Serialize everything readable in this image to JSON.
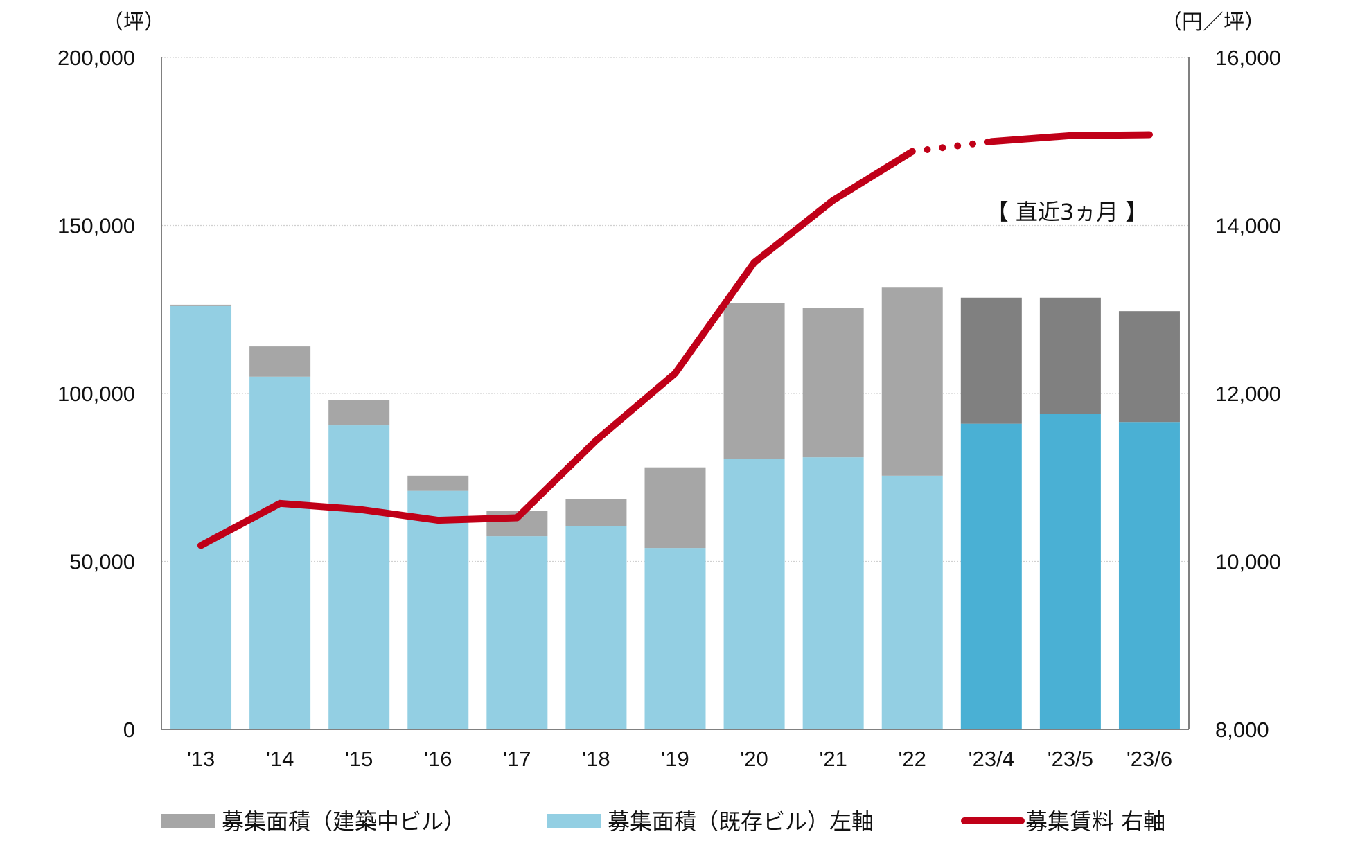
{
  "chart_data": {
    "type": "bar",
    "categories": [
      "'13",
      "'14",
      "'15",
      "'16",
      "'17",
      "'18",
      "'19",
      "'20",
      "'21",
      "'22",
      "'23/4",
      "'23/5",
      "'23/6"
    ],
    "left_axis": {
      "unit": "（坪）",
      "ylim": [
        0,
        200000
      ],
      "ticks": [
        "0",
        "50,000",
        "100,000",
        "150,000",
        "200,000"
      ],
      "tick_values": [
        0,
        50000,
        100000,
        150000,
        200000
      ]
    },
    "right_axis": {
      "unit": "（円／坪）",
      "ylim": [
        8000,
        16000
      ],
      "ticks": [
        "8,000",
        "10,000",
        "12,000",
        "14,000",
        "16,000"
      ],
      "tick_values": [
        8000,
        10000,
        12000,
        14000,
        16000
      ]
    },
    "series": [
      {
        "name": "募集面積（既存ビル）左軸",
        "type": "bar",
        "axis": "left",
        "values": [
          126000,
          105000,
          90500,
          71000,
          57500,
          60500,
          54000,
          80500,
          81000,
          75500,
          91000,
          94000,
          91500
        ]
      },
      {
        "name": "募集面積（建築中ビル）",
        "type": "bar",
        "axis": "left",
        "values": [
          0,
          9000,
          7500,
          4500,
          7500,
          8000,
          24000,
          46500,
          44500,
          56000,
          37500,
          34500,
          33000
        ]
      },
      {
        "name": "募集賃料 右軸",
        "type": "line",
        "axis": "right",
        "values": [
          10190,
          10690,
          10620,
          10490,
          10520,
          11440,
          12240,
          13560,
          14300,
          14880,
          15000,
          15070,
          15080
        ]
      }
    ],
    "annotation": "【 直近3ヵ月 】",
    "grid": true,
    "legend_position": "bottom",
    "colors": {
      "existing_bar": "#93cfe3",
      "existing_bar_recent": "#4ab0d4",
      "construction_bar": "#a6a6a6",
      "construction_bar_recent": "#808080",
      "rent_line": "#c00018",
      "grid": "#d0d0d0",
      "axis": "#808080"
    }
  },
  "legend": {
    "construction": "募集面積（建築中ビル）",
    "existing": "募集面積（既存ビル）左軸",
    "rent": "募集賃料 右軸"
  }
}
